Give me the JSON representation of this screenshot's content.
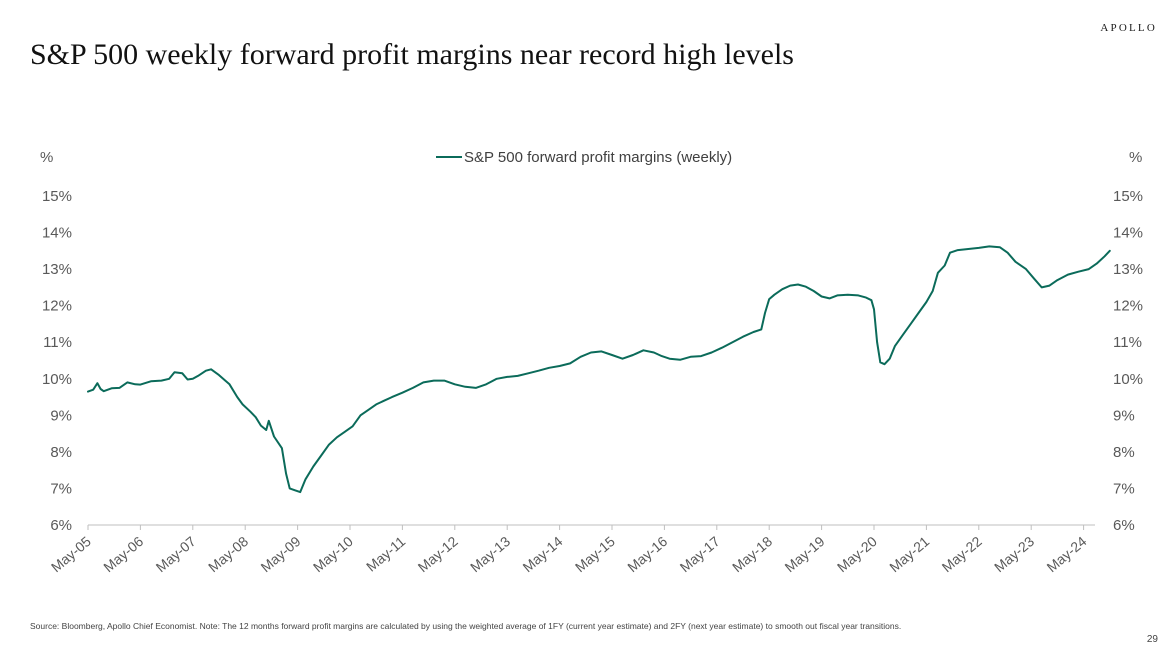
{
  "brand": "APOLLO",
  "title": "S&P 500 weekly forward profit margins near record high levels",
  "source_note": "Source: Bloomberg, Apollo Chief Economist. Note: The 12 months forward profit margins are calculated by using the weighted average of 1FY (current year estimate) and 2FY (next year estimate) to smooth out fiscal year transitions.",
  "page_number": "29",
  "colors": {
    "series": "#0b6b5a",
    "axis": "#bfbfbf",
    "text": "#595959"
  },
  "chart_data": {
    "type": "line",
    "title": "",
    "ylabel_left": "%",
    "ylabel_right": "%",
    "ylim": [
      6,
      15
    ],
    "y_ticks": [
      "6%",
      "7%",
      "8%",
      "9%",
      "10%",
      "11%",
      "12%",
      "13%",
      "14%",
      "15%"
    ],
    "x_range": [
      2005.0,
      2024.5
    ],
    "x_tick_labels": [
      "May-05",
      "May-06",
      "May-07",
      "May-08",
      "May-09",
      "May-10",
      "May-11",
      "May-12",
      "May-13",
      "May-14",
      "May-15",
      "May-16",
      "May-17",
      "May-18",
      "May-19",
      "May-20",
      "May-21",
      "May-22",
      "May-23",
      "May-24"
    ],
    "legend": "top-center",
    "grid": false,
    "series": [
      {
        "name": "S&P 500 forward profit margins (weekly)",
        "x_unit": "year",
        "points": [
          [
            2005.0,
            9.65
          ],
          [
            2005.1,
            9.7
          ],
          [
            2005.18,
            9.88
          ],
          [
            2005.24,
            9.72
          ],
          [
            2005.3,
            9.66
          ],
          [
            2005.45,
            9.74
          ],
          [
            2005.6,
            9.75
          ],
          [
            2005.75,
            9.9
          ],
          [
            2005.9,
            9.85
          ],
          [
            2006.0,
            9.84
          ],
          [
            2006.2,
            9.93
          ],
          [
            2006.4,
            9.95
          ],
          [
            2006.55,
            10.0
          ],
          [
            2006.65,
            10.18
          ],
          [
            2006.8,
            10.15
          ],
          [
            2006.9,
            9.98
          ],
          [
            2007.0,
            10.0
          ],
          [
            2007.1,
            10.08
          ],
          [
            2007.25,
            10.22
          ],
          [
            2007.35,
            10.26
          ],
          [
            2007.5,
            10.1
          ],
          [
            2007.7,
            9.85
          ],
          [
            2007.85,
            9.5
          ],
          [
            2007.95,
            9.3
          ],
          [
            2008.1,
            9.1
          ],
          [
            2008.2,
            8.95
          ],
          [
            2008.3,
            8.72
          ],
          [
            2008.4,
            8.6
          ],
          [
            2008.45,
            8.85
          ],
          [
            2008.55,
            8.42
          ],
          [
            2008.7,
            8.1
          ],
          [
            2008.78,
            7.4
          ],
          [
            2008.85,
            7.0
          ],
          [
            2008.95,
            6.95
          ],
          [
            2009.05,
            6.9
          ],
          [
            2009.15,
            7.25
          ],
          [
            2009.3,
            7.6
          ],
          [
            2009.45,
            7.9
          ],
          [
            2009.6,
            8.2
          ],
          [
            2009.75,
            8.4
          ],
          [
            2009.9,
            8.55
          ],
          [
            2010.05,
            8.7
          ],
          [
            2010.2,
            9.0
          ],
          [
            2010.35,
            9.15
          ],
          [
            2010.5,
            9.3
          ],
          [
            2010.65,
            9.4
          ],
          [
            2010.8,
            9.5
          ],
          [
            2011.0,
            9.62
          ],
          [
            2011.2,
            9.75
          ],
          [
            2011.4,
            9.9
          ],
          [
            2011.6,
            9.95
          ],
          [
            2011.8,
            9.95
          ],
          [
            2012.0,
            9.85
          ],
          [
            2012.2,
            9.78
          ],
          [
            2012.4,
            9.75
          ],
          [
            2012.6,
            9.85
          ],
          [
            2012.8,
            10.0
          ],
          [
            2013.0,
            10.05
          ],
          [
            2013.2,
            10.08
          ],
          [
            2013.4,
            10.15
          ],
          [
            2013.6,
            10.22
          ],
          [
            2013.8,
            10.3
          ],
          [
            2014.0,
            10.35
          ],
          [
            2014.2,
            10.42
          ],
          [
            2014.4,
            10.6
          ],
          [
            2014.6,
            10.72
          ],
          [
            2014.8,
            10.75
          ],
          [
            2015.0,
            10.65
          ],
          [
            2015.2,
            10.55
          ],
          [
            2015.4,
            10.65
          ],
          [
            2015.6,
            10.78
          ],
          [
            2015.8,
            10.72
          ],
          [
            2015.95,
            10.62
          ],
          [
            2016.1,
            10.55
          ],
          [
            2016.3,
            10.52
          ],
          [
            2016.5,
            10.6
          ],
          [
            2016.7,
            10.62
          ],
          [
            2016.9,
            10.72
          ],
          [
            2017.1,
            10.85
          ],
          [
            2017.3,
            11.0
          ],
          [
            2017.5,
            11.15
          ],
          [
            2017.7,
            11.28
          ],
          [
            2017.85,
            11.35
          ],
          [
            2017.92,
            11.8
          ],
          [
            2018.0,
            12.18
          ],
          [
            2018.1,
            12.3
          ],
          [
            2018.25,
            12.45
          ],
          [
            2018.4,
            12.55
          ],
          [
            2018.55,
            12.58
          ],
          [
            2018.7,
            12.52
          ],
          [
            2018.85,
            12.4
          ],
          [
            2019.0,
            12.25
          ],
          [
            2019.15,
            12.2
          ],
          [
            2019.3,
            12.28
          ],
          [
            2019.5,
            12.3
          ],
          [
            2019.7,
            12.28
          ],
          [
            2019.85,
            12.22
          ],
          [
            2019.95,
            12.15
          ],
          [
            2020.0,
            11.9
          ],
          [
            2020.06,
            11.0
          ],
          [
            2020.12,
            10.45
          ],
          [
            2020.2,
            10.4
          ],
          [
            2020.3,
            10.55
          ],
          [
            2020.4,
            10.9
          ],
          [
            2020.55,
            11.2
          ],
          [
            2020.7,
            11.5
          ],
          [
            2020.85,
            11.8
          ],
          [
            2021.0,
            12.1
          ],
          [
            2021.12,
            12.4
          ],
          [
            2021.22,
            12.9
          ],
          [
            2021.35,
            13.1
          ],
          [
            2021.45,
            13.45
          ],
          [
            2021.6,
            13.52
          ],
          [
            2021.8,
            13.55
          ],
          [
            2022.0,
            13.58
          ],
          [
            2022.2,
            13.62
          ],
          [
            2022.4,
            13.6
          ],
          [
            2022.55,
            13.45
          ],
          [
            2022.7,
            13.2
          ],
          [
            2022.9,
            13.0
          ],
          [
            2023.05,
            12.75
          ],
          [
            2023.2,
            12.5
          ],
          [
            2023.35,
            12.55
          ],
          [
            2023.5,
            12.7
          ],
          [
            2023.7,
            12.85
          ],
          [
            2023.9,
            12.93
          ],
          [
            2024.1,
            13.0
          ],
          [
            2024.25,
            13.15
          ],
          [
            2024.4,
            13.35
          ],
          [
            2024.5,
            13.5
          ]
        ]
      }
    ]
  }
}
